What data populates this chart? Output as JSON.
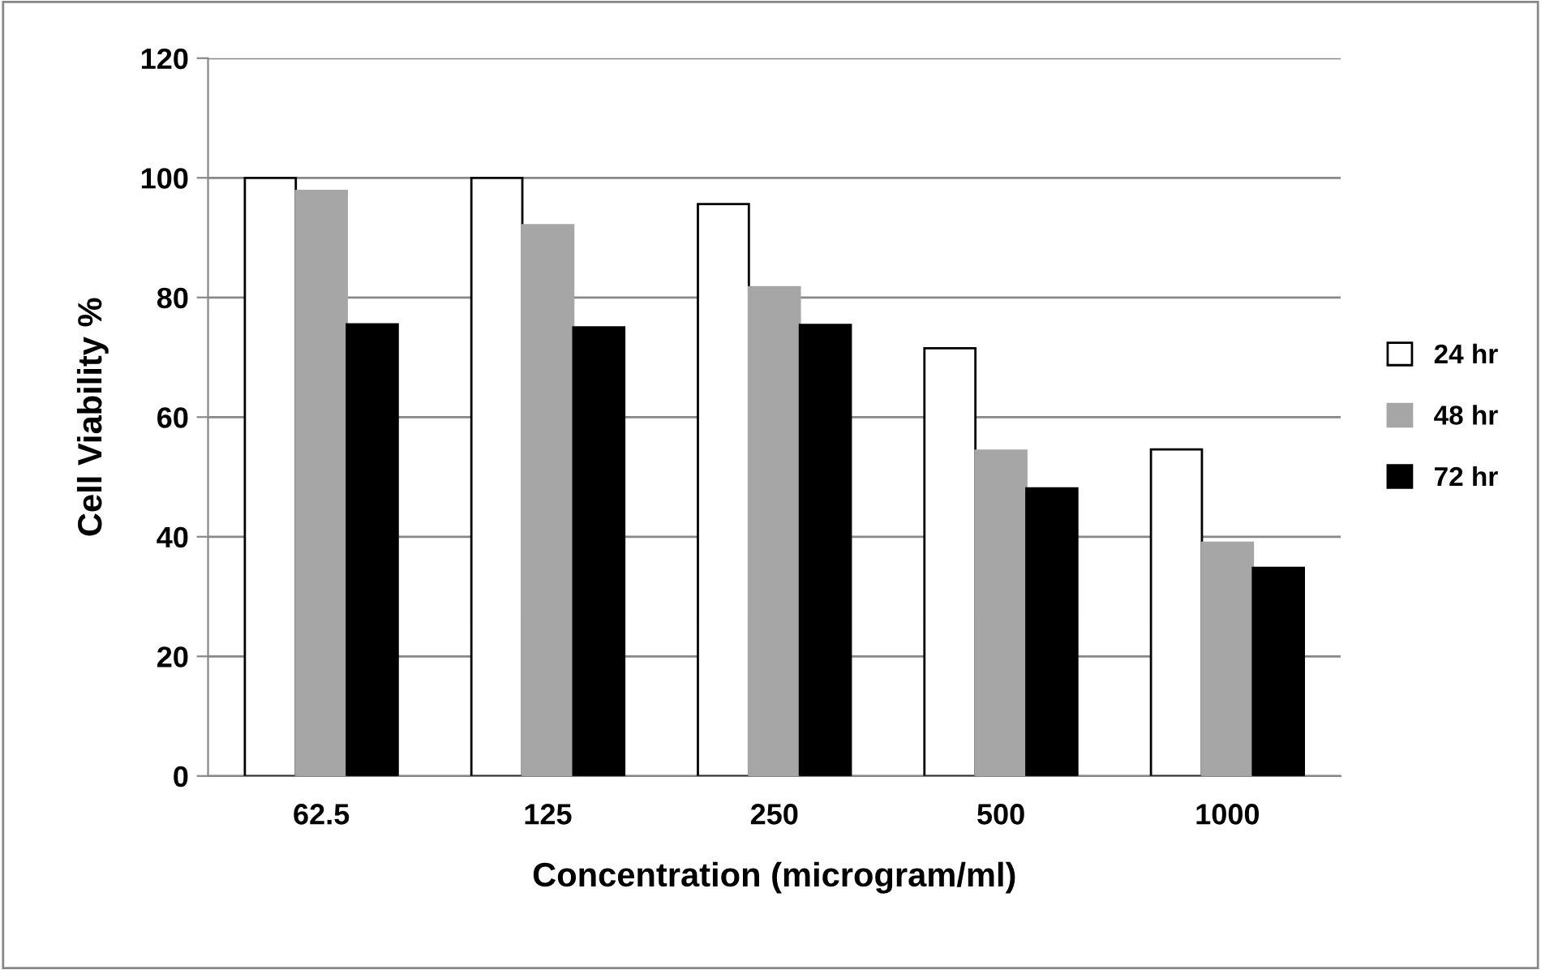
{
  "chart_data": {
    "type": "bar",
    "xlabel": "Concentration (microgram/ml)",
    "ylabel": "Cell Viability %",
    "categories": [
      "62.5",
      "125",
      "250",
      "500",
      "1000"
    ],
    "series": [
      {
        "name": "24 hr",
        "color": "#ffffff",
        "values": [
          100,
          100,
          95.6,
          71.5,
          54.6
        ]
      },
      {
        "name": "48 hr",
        "color": "#a6a6a6",
        "values": [
          97.8,
          92.1,
          81.7,
          54.4,
          39.0
        ]
      },
      {
        "name": "72 hr",
        "color": "#000000",
        "values": [
          75.5,
          75.0,
          75.4,
          48.1,
          34.8
        ]
      }
    ],
    "ylim": [
      0,
      120
    ],
    "yticks": [
      0,
      20,
      40,
      60,
      80,
      100,
      120
    ],
    "grid": "y",
    "legend": "right"
  }
}
